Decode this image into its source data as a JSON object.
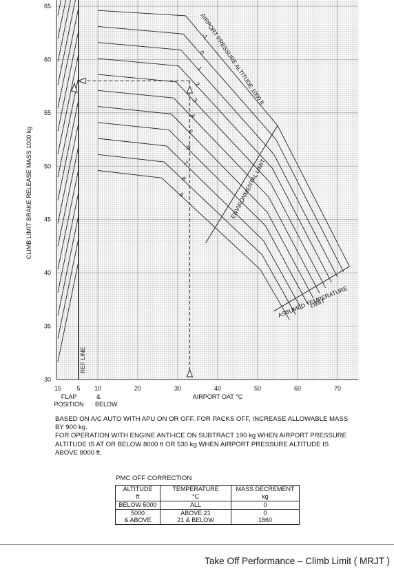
{
  "chart_data": {
    "type": "line",
    "title": "",
    "xlabel": "AIRPORT OAT",
    "xlabel_unit": "°C",
    "ylabel": "CLIMB LIMIT BRAKE RELEASE MASS  1000 kg",
    "ylim": [
      30,
      65
    ],
    "xlim": [
      10,
      73
    ],
    "grid": true,
    "y_ticks": [
      "30",
      "35",
      "40",
      "45",
      "50",
      "55",
      "60",
      "65"
    ],
    "x_ticks": [
      "10",
      "20",
      "30",
      "40",
      "50",
      "60",
      "70"
    ],
    "flap_ticks": [
      "15",
      "5"
    ],
    "flap_axis_label": "FLAP\nPOSITION",
    "below_label": "&\nBELOW",
    "ref_line_label": "REF LINE",
    "pressure_altitude_label": "AIRPORT PRESSURE ALTITUDE  1000 ft",
    "environmental_limit_label": "ENVIRONMENTAL LIMIT",
    "assumed_temperature_label": "ASSUMED TEMPERATURE\nLIMIT",
    "series": [
      {
        "name": "-1",
        "points": [
          [
            10,
            64.6
          ],
          [
            32,
            64.1
          ],
          [
            55,
            53.8
          ],
          [
            73,
            40.6
          ]
        ]
      },
      {
        "name": "0",
        "points": [
          [
            10,
            63.1
          ],
          [
            31.4,
            62.4
          ],
          [
            54.6,
            52.5
          ],
          [
            71.5,
            40.1
          ]
        ]
      },
      {
        "name": "1",
        "points": [
          [
            10,
            61.6
          ],
          [
            30.8,
            60.9
          ],
          [
            54.1,
            51.1
          ],
          [
            70,
            39.6
          ]
        ]
      },
      {
        "name": "2",
        "points": [
          [
            10,
            60.1
          ],
          [
            30.2,
            59.4
          ],
          [
            53.7,
            49.8
          ],
          [
            68.5,
            39.1
          ]
        ]
      },
      {
        "name": "3",
        "points": [
          [
            10,
            58.6
          ],
          [
            29.6,
            57.9
          ],
          [
            53.3,
            48.4
          ],
          [
            67,
            38.6
          ]
        ]
      },
      {
        "name": "4",
        "points": [
          [
            10,
            57.1
          ],
          [
            29,
            56.4
          ],
          [
            52.8,
            47.1
          ],
          [
            65.5,
            38.1
          ]
        ]
      },
      {
        "name": "5",
        "points": [
          [
            10,
            55.6
          ],
          [
            28.4,
            54.9
          ],
          [
            52.4,
            45.7
          ],
          [
            64,
            37.6
          ]
        ]
      },
      {
        "name": "6",
        "points": [
          [
            10,
            54.1
          ],
          [
            27.8,
            53.4
          ],
          [
            52,
            44.4
          ],
          [
            62.5,
            37.1
          ]
        ]
      },
      {
        "name": "7",
        "points": [
          [
            10,
            52.6
          ],
          [
            27.2,
            51.9
          ],
          [
            51.5,
            43.0
          ],
          [
            61,
            36.6
          ]
        ]
      },
      {
        "name": "8",
        "points": [
          [
            10,
            51.1
          ],
          [
            26.6,
            50.4
          ],
          [
            51.1,
            41.7
          ],
          [
            59.5,
            36.1
          ]
        ]
      },
      {
        "name": "9",
        "points": [
          [
            10,
            49.6
          ],
          [
            26,
            48.9
          ],
          [
            50.7,
            40.3
          ],
          [
            58,
            35.6
          ]
        ]
      }
    ],
    "environmental_limit_line": [
      [
        37,
        42.8
      ],
      [
        55,
        53.8
      ]
    ],
    "assumed_temperature_limit_line": [
      [
        54,
        36.4
      ],
      [
        73,
        40.6
      ]
    ],
    "example_path": [
      [
        33,
        30
      ],
      [
        33,
        58.0
      ],
      [
        5,
        58.0
      ]
    ],
    "flap_correction_lines": 16
  },
  "notes": {
    "line1": "BASED ON A/C AUTO  WITH APU ON OR OFF.   FOR PACKS OFF, INCREASE ALLOWABLE MASS",
    "line2": "BY 900 kg.",
    "line3": "FOR OPERATION WITH ENGINE ANTI-ICE ON SUBTRACT 190 kg WHEN AIRPORT PRESSURE",
    "line4": "ALTITUDE IS AT OR BELOW 8000 ft OR 530 kg WHEN AIRPORT PRESSURE ALTITUDE IS",
    "line5": "ABOVE 8000 ft."
  },
  "pmc_table": {
    "title": "PMC OFF CORRECTION",
    "headers": [
      {
        "line1": "ALTITUDE",
        "line2": "ft"
      },
      {
        "line1": "TEMPERATURE",
        "line2": "°C"
      },
      {
        "line1": "MASS DECREMENT",
        "line2": "kg"
      }
    ],
    "rows": [
      {
        "altitude": "BELOW 5000",
        "temperature": "ALL",
        "mass": "0"
      },
      {
        "altitude": "5000\n& ABOVE",
        "temperature": "ABOVE 21\n21 & BELOW",
        "mass": "0\n1860"
      }
    ]
  },
  "footer": {
    "title": "Take Off Performance – Climb Limit ( MRJT )"
  }
}
